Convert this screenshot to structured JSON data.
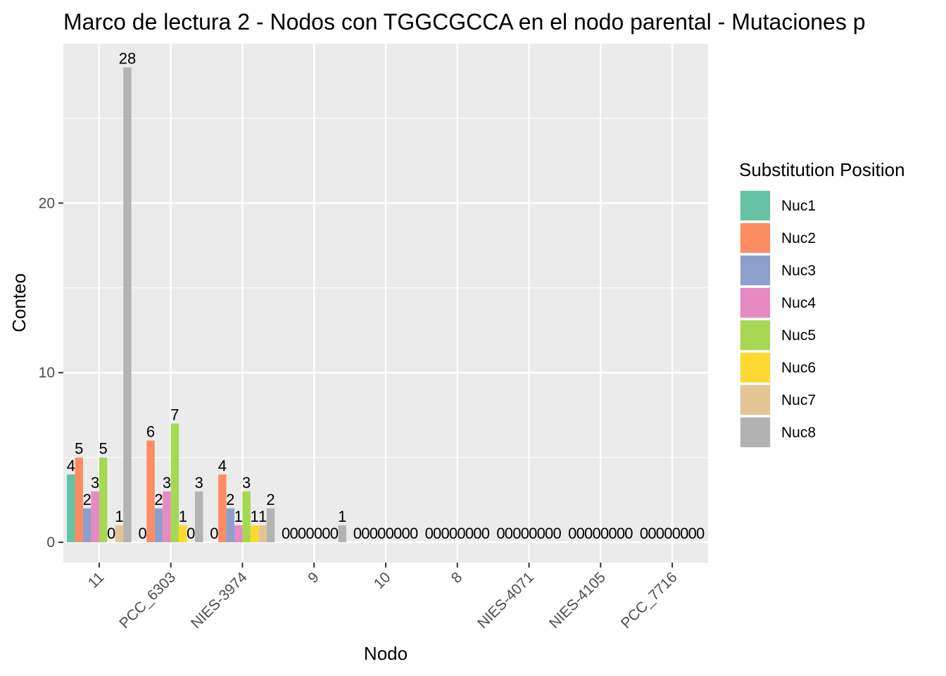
{
  "chart_data": {
    "type": "bar",
    "title": "Marco de lectura 2 - Nodos con TGGCGCCA en el nodo parental - Mutaciones p",
    "xlabel": "Nodo",
    "ylabel": "Conteo",
    "ylim": [
      -1.2,
      29.4
    ],
    "yticks": [
      0,
      10,
      20
    ],
    "grid": true,
    "legend_position": "right",
    "legend_title": "Substitution Position",
    "categories": [
      "11",
      "PCC_6303",
      "NIES-3974",
      "9",
      "10",
      "8",
      "NIES-4071",
      "NIES-4105",
      "PCC_7716"
    ],
    "series": [
      {
        "name": "Nuc1",
        "color": "#66c2a5",
        "values": [
          4,
          0,
          0,
          0,
          0,
          0,
          0,
          0,
          0
        ]
      },
      {
        "name": "Nuc2",
        "color": "#fc8d62",
        "values": [
          5,
          6,
          4,
          0,
          0,
          0,
          0,
          0,
          0
        ]
      },
      {
        "name": "Nuc3",
        "color": "#8da0cb",
        "values": [
          2,
          2,
          2,
          0,
          0,
          0,
          0,
          0,
          0
        ]
      },
      {
        "name": "Nuc4",
        "color": "#e78ac3",
        "values": [
          3,
          3,
          1,
          0,
          0,
          0,
          0,
          0,
          0
        ]
      },
      {
        "name": "Nuc5",
        "color": "#a6d854",
        "values": [
          5,
          7,
          3,
          0,
          0,
          0,
          0,
          0,
          0
        ]
      },
      {
        "name": "Nuc6",
        "color": "#ffd92f",
        "values": [
          0,
          1,
          1,
          0,
          0,
          0,
          0,
          0,
          0
        ]
      },
      {
        "name": "Nuc7",
        "color": "#e5c494",
        "values": [
          1,
          0,
          1,
          0,
          0,
          0,
          0,
          0,
          0
        ]
      },
      {
        "name": "Nuc8",
        "color": "#b3b3b3",
        "values": [
          28,
          3,
          2,
          1,
          0,
          0,
          0,
          0,
          0
        ]
      }
    ],
    "data_labels": [
      [
        4,
        5,
        2,
        3,
        5,
        0,
        1,
        28
      ],
      [
        0,
        6,
        2,
        3,
        7,
        1,
        0,
        3
      ],
      [
        0,
        4,
        2,
        1,
        3,
        1,
        1,
        2
      ],
      [
        0,
        0,
        0,
        0,
        0,
        0,
        0,
        1
      ],
      [
        0,
        0,
        0,
        0,
        0,
        0,
        0,
        0
      ],
      [
        0,
        0,
        0,
        0,
        0,
        0,
        0,
        0
      ],
      [
        0,
        0,
        0,
        0,
        0,
        0,
        0,
        0
      ],
      [
        0,
        0,
        0,
        0,
        0,
        0,
        0,
        0
      ],
      [
        0,
        0,
        0,
        0,
        0,
        0,
        0,
        0
      ]
    ]
  }
}
